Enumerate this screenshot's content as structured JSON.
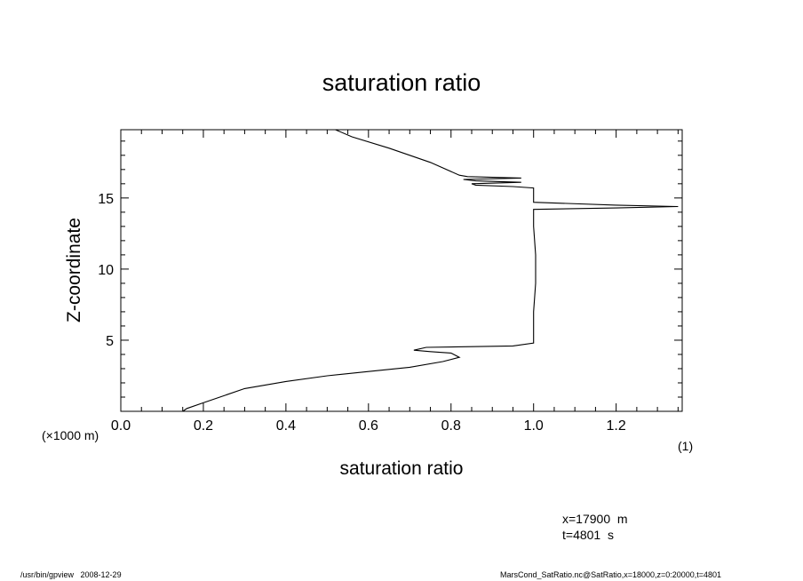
{
  "chart_data": {
    "type": "line",
    "title": "saturation ratio",
    "xlabel": "saturation ratio",
    "xunit": "(1)",
    "ylabel": "Z-coordinate",
    "yunit": "(×1000 m)",
    "xlim": [
      0.0,
      1.36
    ],
    "ylim": [
      0,
      19.8
    ],
    "xticks": [
      "0.0",
      "0.2",
      "0.4",
      "0.6",
      "0.8",
      "1.0",
      "1.2"
    ],
    "yticks": [
      "5",
      "10",
      "15"
    ],
    "grid": false,
    "series": [
      {
        "x": [
          0.15,
          0.16,
          0.2,
          0.3,
          0.4,
          0.5,
          0.6,
          0.7,
          0.78,
          0.82,
          0.8,
          0.75,
          0.71,
          0.74,
          0.95,
          1.0,
          1.0,
          1.005,
          1.005,
          1.0,
          1.0,
          1.0,
          1.0,
          1.2,
          1.35,
          1.2,
          1.0,
          1.0,
          1.0,
          0.95,
          0.86,
          0.85,
          0.97,
          0.86,
          0.83,
          0.97,
          0.84,
          0.82,
          0.75,
          0.65,
          0.56,
          0.52
        ],
        "y": [
          0.0,
          0.2,
          0.6,
          1.6,
          2.1,
          2.5,
          2.8,
          3.1,
          3.5,
          3.8,
          4.1,
          4.2,
          4.3,
          4.5,
          4.6,
          4.8,
          7.0,
          9.0,
          11.0,
          13.0,
          13.7,
          14.0,
          14.2,
          14.3,
          14.4,
          14.5,
          14.7,
          15.0,
          15.7,
          15.8,
          15.9,
          16.0,
          16.1,
          16.2,
          16.3,
          16.4,
          16.5,
          16.6,
          17.5,
          18.5,
          19.3,
          19.8
        ]
      }
    ]
  },
  "annotations": {
    "x_position": "x=17900  m",
    "t_position": "t=4801  s",
    "footer_left": "/usr/bin/gpview   2008-12-29",
    "footer_right": "MarsCond_SatRatio.nc@SatRatio,x=18000,z=0:20000,t=4801"
  }
}
